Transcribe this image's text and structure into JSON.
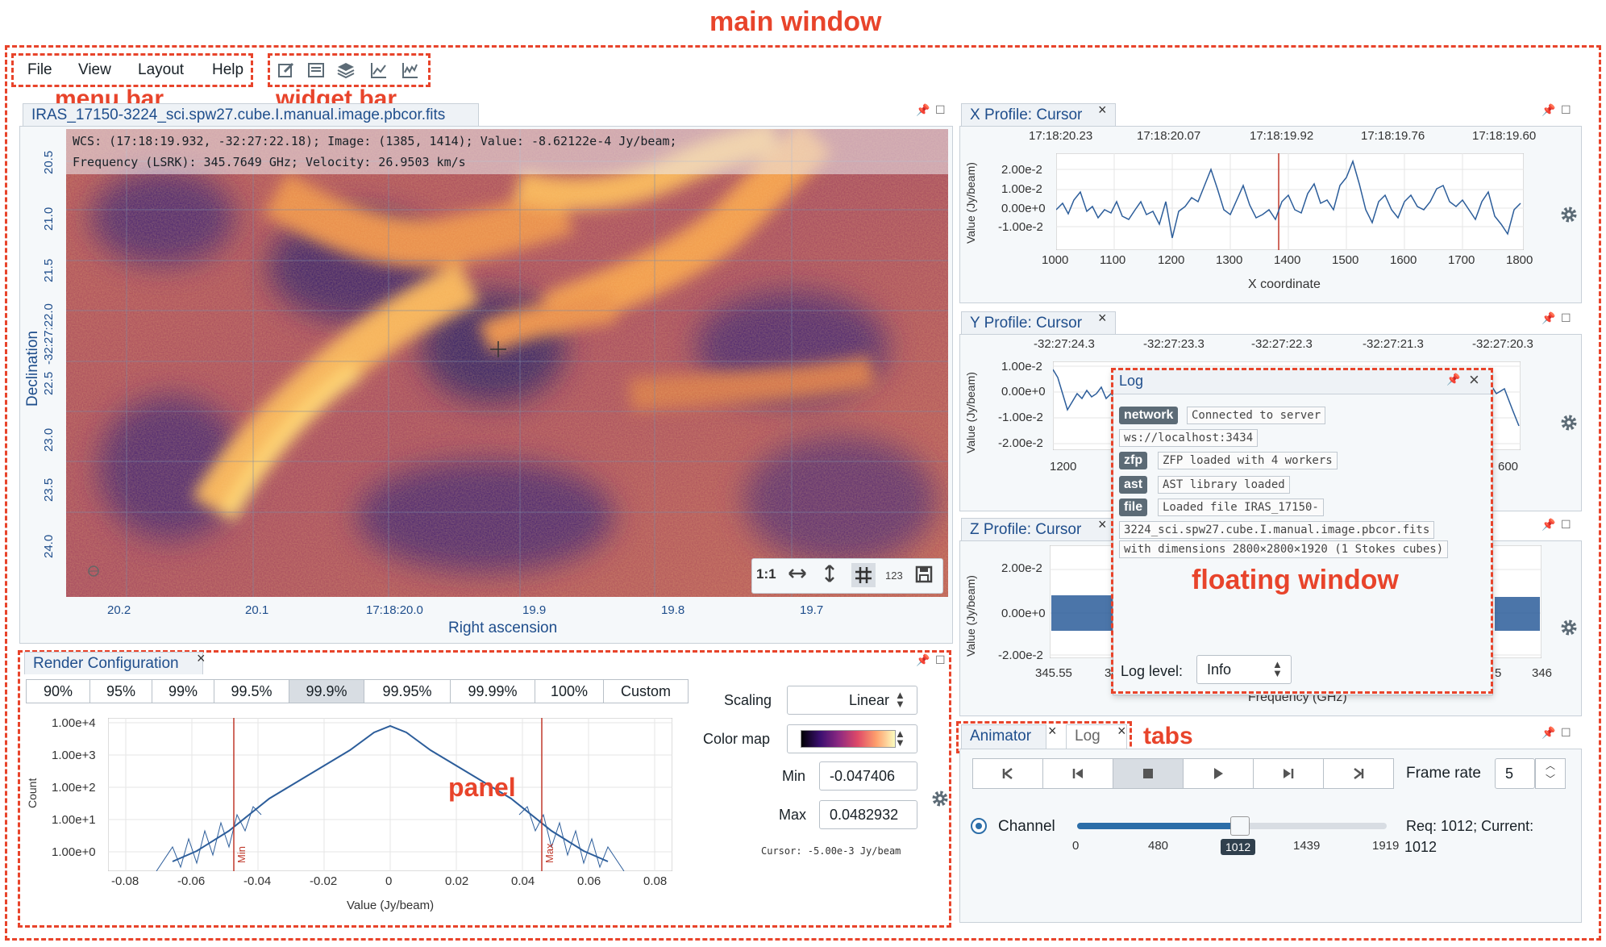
{
  "annotations": {
    "main_window": "main window",
    "menu_bar": "menu bar",
    "widget_bar": "widget bar",
    "panel": "panel",
    "floating_window": "floating window",
    "tabs": "tabs"
  },
  "menu": {
    "items": [
      "File",
      "View",
      "Layout",
      "Help"
    ]
  },
  "widget_bar": {
    "icons": [
      "region-edit-icon",
      "file-header-icon",
      "layers-icon",
      "line-chart-icon",
      "histogram-chart-icon"
    ]
  },
  "image_viewer": {
    "tab_title": "IRAS_17150-3224_sci.spw27.cube.I.manual.image.pbcor.fits",
    "cursor_info_line1": "WCS: (17:18:19.932, -32:27:22.18); Image: (1385, 1414); Value: -8.62122e-4 Jy/beam;",
    "cursor_info_line2": "Frequency (LSRK): 345.7649 GHz; Velocity: 26.9503 km/s",
    "y_axis_label": "Declination",
    "x_axis_label": "Right ascension",
    "y_ticks": [
      "20.5",
      "21.0",
      "21.5",
      "-32:27:22.0",
      "22.5",
      "23.0",
      "23.5",
      "24.0"
    ],
    "x_ticks": [
      "20.2",
      "20.1",
      "17:18:20.0",
      "19.9",
      "19.8",
      "19.7"
    ],
    "toolbar": {
      "zoom_1to1": "1:1",
      "wcs_label": "123"
    }
  },
  "x_profile": {
    "title": "X Profile: Cursor",
    "top_ticks": [
      "17:18:20.23",
      "17:18:20.07",
      "17:18:19.92",
      "17:18:19.76",
      "17:18:19.60"
    ],
    "y_ticks": [
      "2.00e-2",
      "1.00e-2",
      "0.00e+0",
      "-1.00e-2"
    ],
    "x_ticks": [
      "1000",
      "1100",
      "1200",
      "1300",
      "1400",
      "1500",
      "1600",
      "1700",
      "1800"
    ],
    "ylabel": "Value (Jy/beam)",
    "xlabel": "X coordinate"
  },
  "y_profile": {
    "title": "Y Profile: Cursor",
    "top_ticks": [
      "-32:27:24.3",
      "-32:27:23.3",
      "-32:27:22.3",
      "-32:27:21.3",
      "-32:27:20.3"
    ],
    "y_ticks": [
      "1.00e-2",
      "0.00e+0",
      "-1.00e-2",
      "-2.00e-2"
    ],
    "x_ticks": [
      "1200",
      "600"
    ],
    "ylabel": "Value (Jy/beam)"
  },
  "z_profile": {
    "title": "Z Profile: Cursor",
    "y_ticks": [
      "2.00e-2",
      "0.00e+0",
      "-2.00e-2"
    ],
    "x_ticks": [
      "345.55",
      "34",
      "5",
      "346"
    ],
    "ylabel": "Value (Jy/beam)",
    "xlabel": "Frequency (GHz)"
  },
  "render_config": {
    "title": "Render Configuration",
    "percentiles": [
      "90%",
      "95%",
      "99%",
      "99.5%",
      "99.9%",
      "99.95%",
      "99.99%",
      "100%",
      "Custom"
    ],
    "active_percentile": "99.9%",
    "scaling_label": "Scaling",
    "scaling_value": "Linear",
    "colormap_label": "Color map",
    "min_label": "Min",
    "min_value": "-0.047406",
    "max_label": "Max",
    "max_value": "0.0482932",
    "cursor_text": "Cursor: -5.00e-3 Jy/beam",
    "hist_ylabel": "Count",
    "hist_xlabel": "Value (Jy/beam)",
    "hist_y_ticks": [
      "1.00e+4",
      "1.00e+3",
      "1.00e+2",
      "1.00e+1",
      "1.00e+0"
    ],
    "hist_x_ticks": [
      "-0.08",
      "-0.06",
      "-0.04",
      "-0.02",
      "0",
      "0.02",
      "0.04",
      "0.06",
      "0.08"
    ],
    "min_marker": "Min",
    "max_marker": "Max"
  },
  "animator": {
    "tab_animator": "Animator",
    "tab_log": "Log",
    "frame_rate_label": "Frame rate",
    "frame_rate_value": "5",
    "channel_label": "Channel",
    "slider_ticks": [
      "0",
      "480",
      "1012",
      "1439",
      "1919"
    ],
    "slider_value": "1012",
    "slider_fraction": 0.527,
    "status": "Req: 1012; Current:",
    "status_value": "1012"
  },
  "log_window": {
    "title": "Log",
    "entries": [
      {
        "tag": "network",
        "lines": [
          "Connected to server",
          "ws://localhost:3434"
        ]
      },
      {
        "tag": "zfp",
        "lines": [
          "ZFP loaded with 4 workers"
        ]
      },
      {
        "tag": "ast",
        "lines": [
          "AST library loaded"
        ]
      },
      {
        "tag": "file",
        "lines": [
          "Loaded file IRAS_17150-",
          "3224_sci.spw27.cube.I.manual.image.pbcor.fits",
          "with dimensions 2800×2800×1920 (1 Stokes cubes)"
        ]
      }
    ],
    "log_level_label": "Log level:",
    "log_level_value": "Info"
  },
  "colors": {
    "accent": "#e8442b",
    "plot_line": "#2c5d9a",
    "marker": "#c0392b"
  }
}
